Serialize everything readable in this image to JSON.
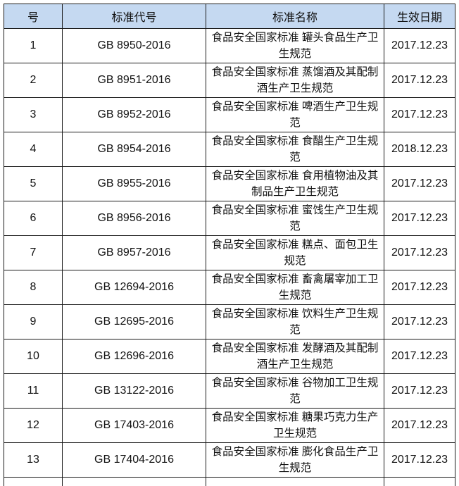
{
  "header": {
    "no": "号",
    "code": "标准代号",
    "name": "标准名称",
    "date": "生效日期"
  },
  "rows": [
    {
      "no": "1",
      "code": "GB 8950-2016",
      "name": "食品安全国家标准 罐头食品生产卫生规范",
      "date": "2017.12.23"
    },
    {
      "no": "2",
      "code": "GB 8951-2016",
      "name": "食品安全国家标准 蒸馏酒及其配制酒生产卫生规范",
      "date": "2017.12.23"
    },
    {
      "no": "3",
      "code": "GB 8952-2016",
      "name": "食品安全国家标准 啤酒生产卫生规范",
      "date": "2017.12.23"
    },
    {
      "no": "4",
      "code": "GB 8954-2016",
      "name": "食品安全国家标准 食醋生产卫生规范",
      "date": "2018.12.23"
    },
    {
      "no": "5",
      "code": "GB 8955-2016",
      "name": "食品安全国家标准 食用植物油及其制品生产卫生规范",
      "date": "2017.12.23"
    },
    {
      "no": "6",
      "code": "GB 8956-2016",
      "name": "食品安全国家标准 蜜饯生产卫生规范",
      "date": "2017.12.23"
    },
    {
      "no": "7",
      "code": "GB 8957-2016",
      "name": "食品安全国家标准 糕点、面包卫生规范",
      "date": "2017.12.23"
    },
    {
      "no": "8",
      "code": "GB 12694-2016",
      "name": "食品安全国家标准 畜禽屠宰加工卫生规范",
      "date": "2017.12.23"
    },
    {
      "no": "9",
      "code": "GB 12695-2016",
      "name": "食品安全国家标准 饮料生产卫生规范",
      "date": "2017.12.23"
    },
    {
      "no": "10",
      "code": "GB 12696-2016",
      "name": "食品安全国家标准 发酵酒及其配制酒生产卫生规范",
      "date": "2017.12.23"
    },
    {
      "no": "11",
      "code": "GB 13122-2016",
      "name": "食品安全国家标准 谷物加工卫生规范",
      "date": "2017.12.23"
    },
    {
      "no": "12",
      "code": "GB 17403-2016",
      "name": "食品安全国家标准 糖果巧克力生产卫生规范",
      "date": "2017.12.23"
    },
    {
      "no": "13",
      "code": "GB 17404-2016",
      "name": "食品安全国家标准 膨化食品生产卫生规范",
      "date": "2017.12.23"
    }
  ],
  "colors": {
    "header_bg": "#c5d9f1",
    "border": "#1a1a1a"
  }
}
